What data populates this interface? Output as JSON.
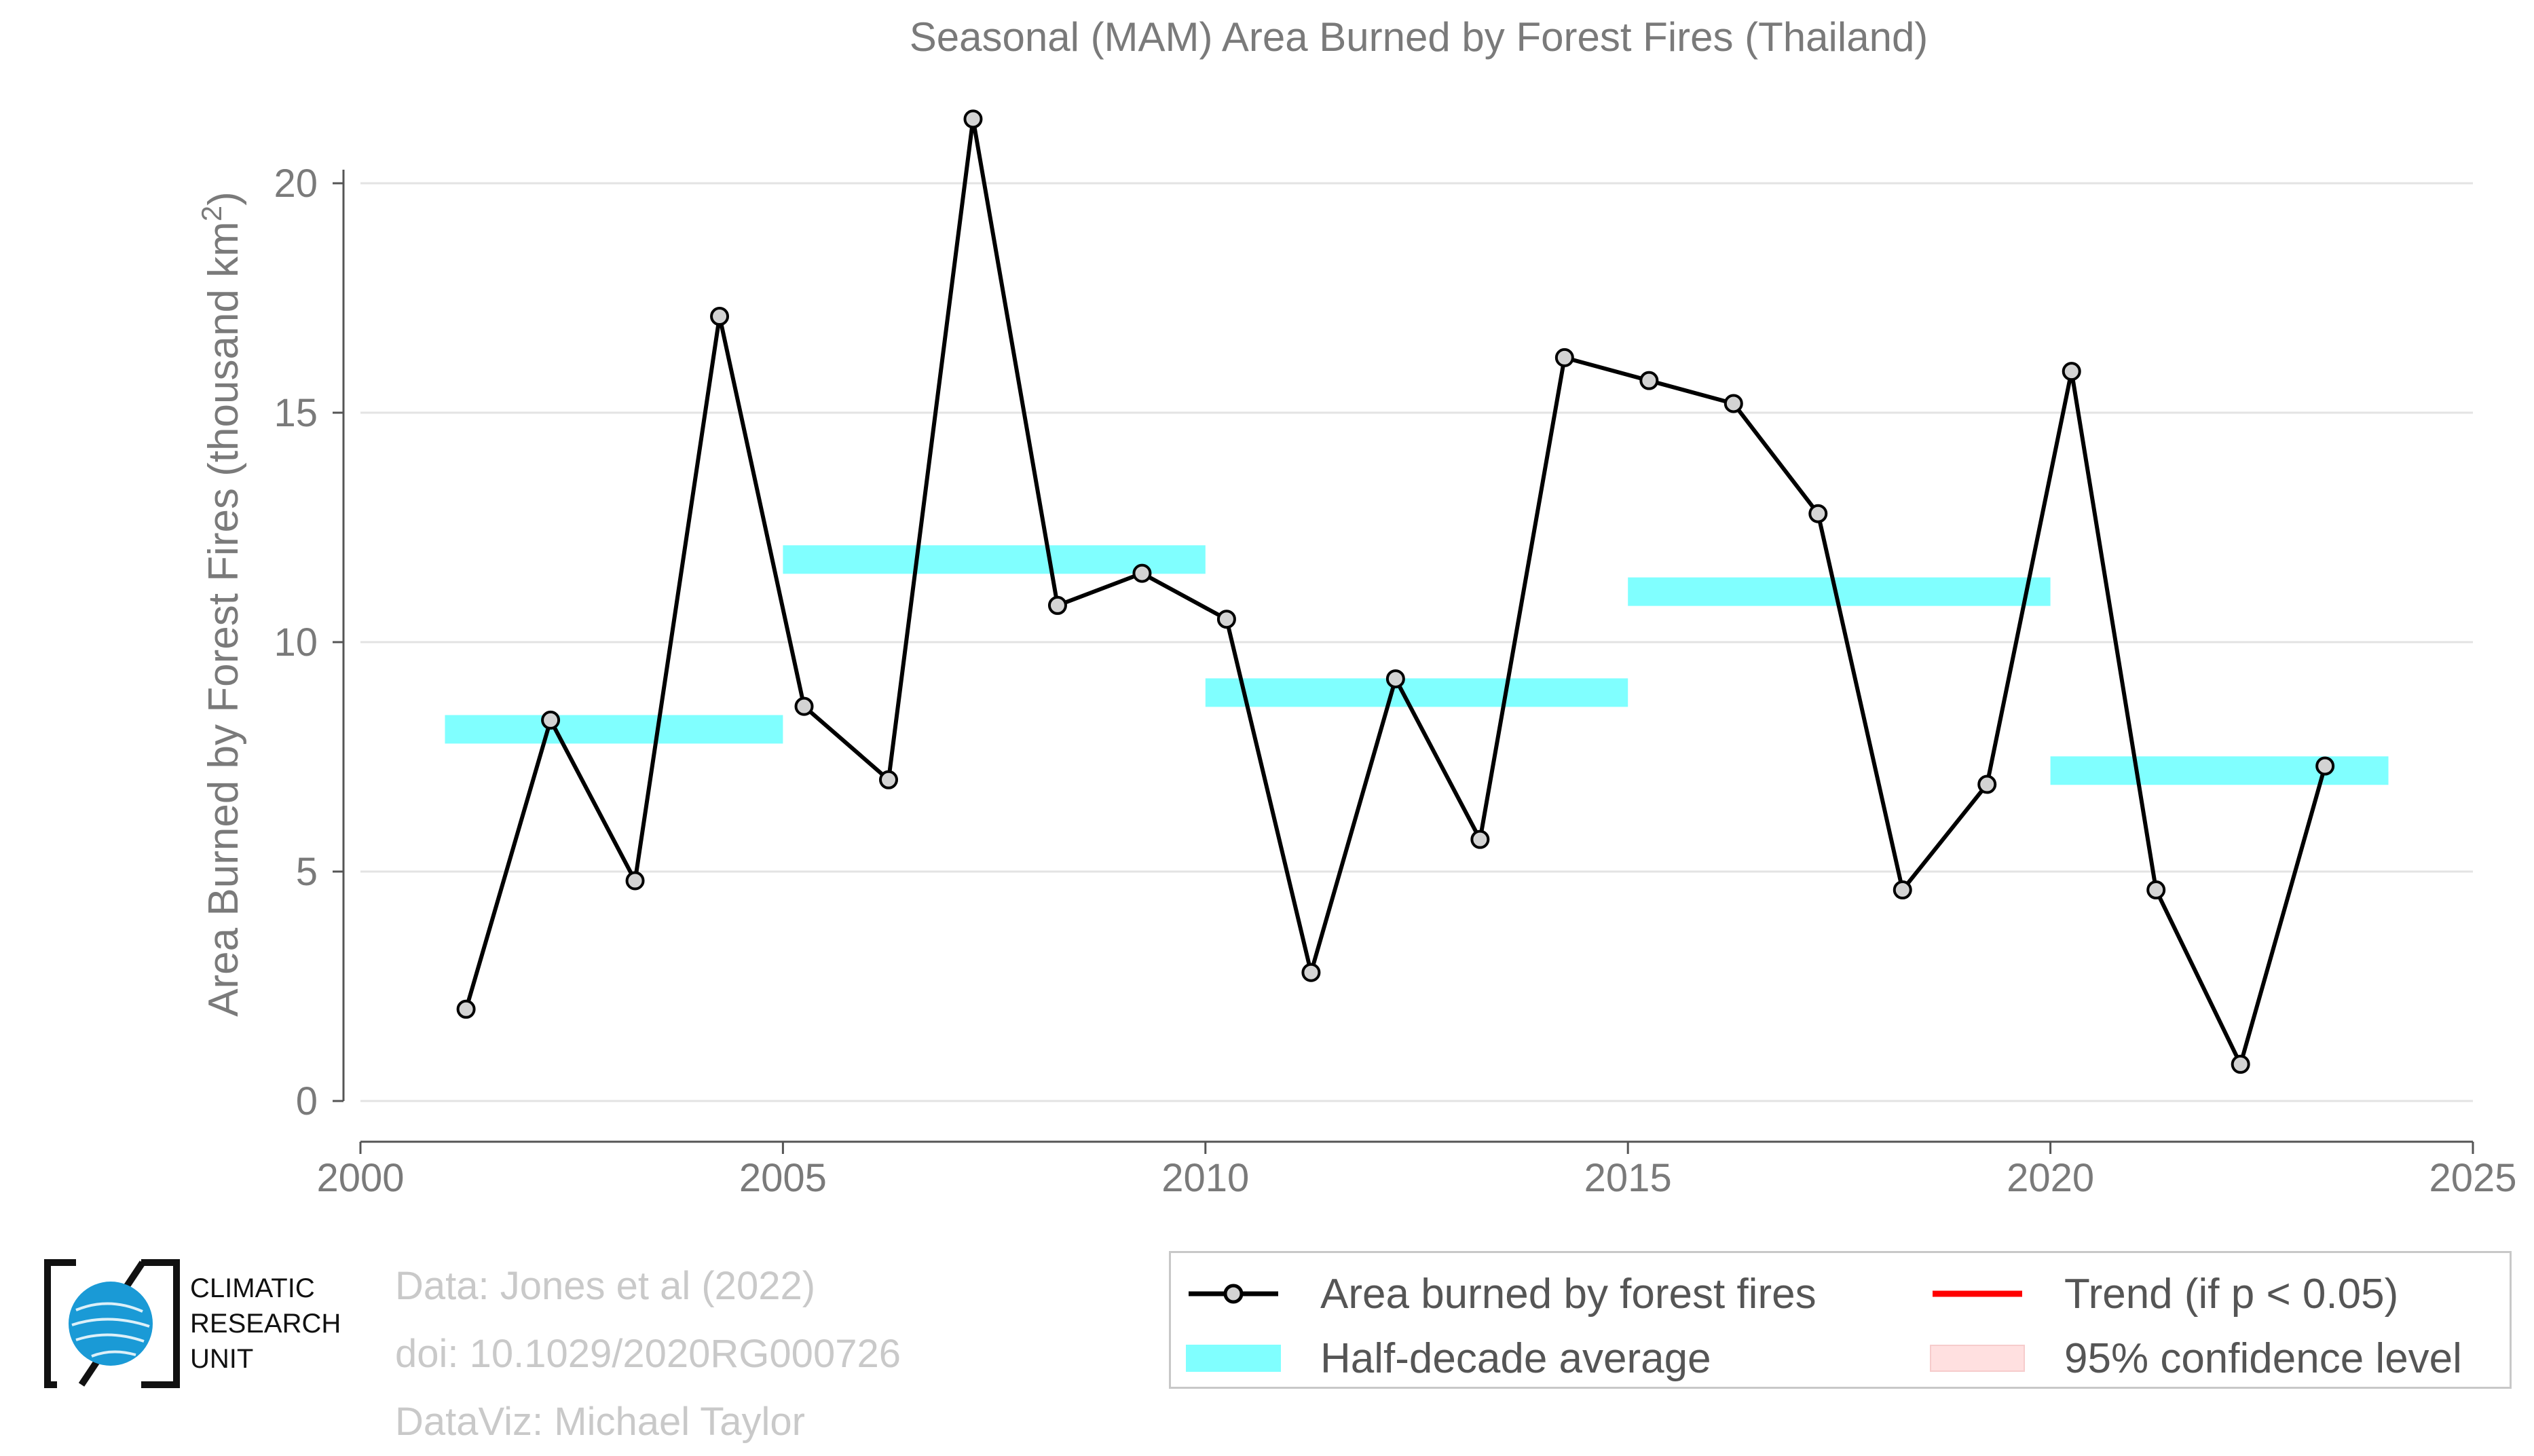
{
  "chart_data": {
    "type": "line",
    "title": "Seasonal (MAM) Area Burned by Forest Fires (Thailand)",
    "xlabel": "",
    "ylabel": "Area Burned by Forest Fires (thousand km²)",
    "xlim": [
      2000,
      2025
    ],
    "ylim": [
      0,
      22
    ],
    "x_ticks": [
      2000,
      2005,
      2010,
      2015,
      2020,
      2025
    ],
    "y_ticks": [
      0,
      5,
      10,
      15,
      20
    ],
    "grid": "horizontal",
    "series": [
      {
        "name": "Area burned by forest fires",
        "color": "#000000",
        "marker_fill": "#d3d3d3",
        "x": [
          2001.25,
          2002.25,
          2003.25,
          2004.25,
          2005.25,
          2006.25,
          2007.25,
          2008.25,
          2009.25,
          2010.25,
          2011.25,
          2012.25,
          2013.25,
          2014.25,
          2015.25,
          2016.25,
          2017.25,
          2018.25,
          2019.25,
          2020.25,
          2021.25,
          2022.25,
          2023.25
        ],
        "y": [
          2.0,
          8.3,
          4.8,
          17.1,
          8.6,
          7.0,
          21.4,
          10.8,
          11.5,
          10.5,
          2.8,
          9.2,
          5.7,
          16.2,
          15.7,
          15.2,
          12.8,
          4.6,
          6.9,
          15.9,
          4.6,
          0.8,
          7.3
        ]
      }
    ],
    "half_decade_average": {
      "name": "Half-decade average",
      "color": "#80ffff",
      "segments": [
        {
          "x_start": 2001,
          "x_end": 2005,
          "value": 8.1
        },
        {
          "x_start": 2005,
          "x_end": 2010,
          "value": 11.8
        },
        {
          "x_start": 2010,
          "x_end": 2015,
          "value": 8.9
        },
        {
          "x_start": 2015,
          "x_end": 2020,
          "value": 11.1
        },
        {
          "x_start": 2020,
          "x_end": 2024,
          "value": 7.2
        }
      ]
    },
    "legend": {
      "placement": "bottom-right",
      "entries": [
        {
          "label": "Area burned by forest fires",
          "color": "#000000"
        },
        {
          "label": "Half-decade average",
          "color": "#80ffff"
        },
        {
          "label": "Trend (if p < 0.05)",
          "color": "#ff0000"
        },
        {
          "label": "95% confidence level",
          "color": "#ffe0e0"
        }
      ]
    }
  },
  "credits": {
    "data": "Data: Jones et al (2022)",
    "doi": "doi: 10.1029/2020RG000726",
    "dataviz": "DataViz: Michael Taylor"
  },
  "logo": {
    "line1": "CLIMATIC",
    "line2": "RESEARCH",
    "line3": "UNIT",
    "globe_color": "#1a9ad6"
  }
}
